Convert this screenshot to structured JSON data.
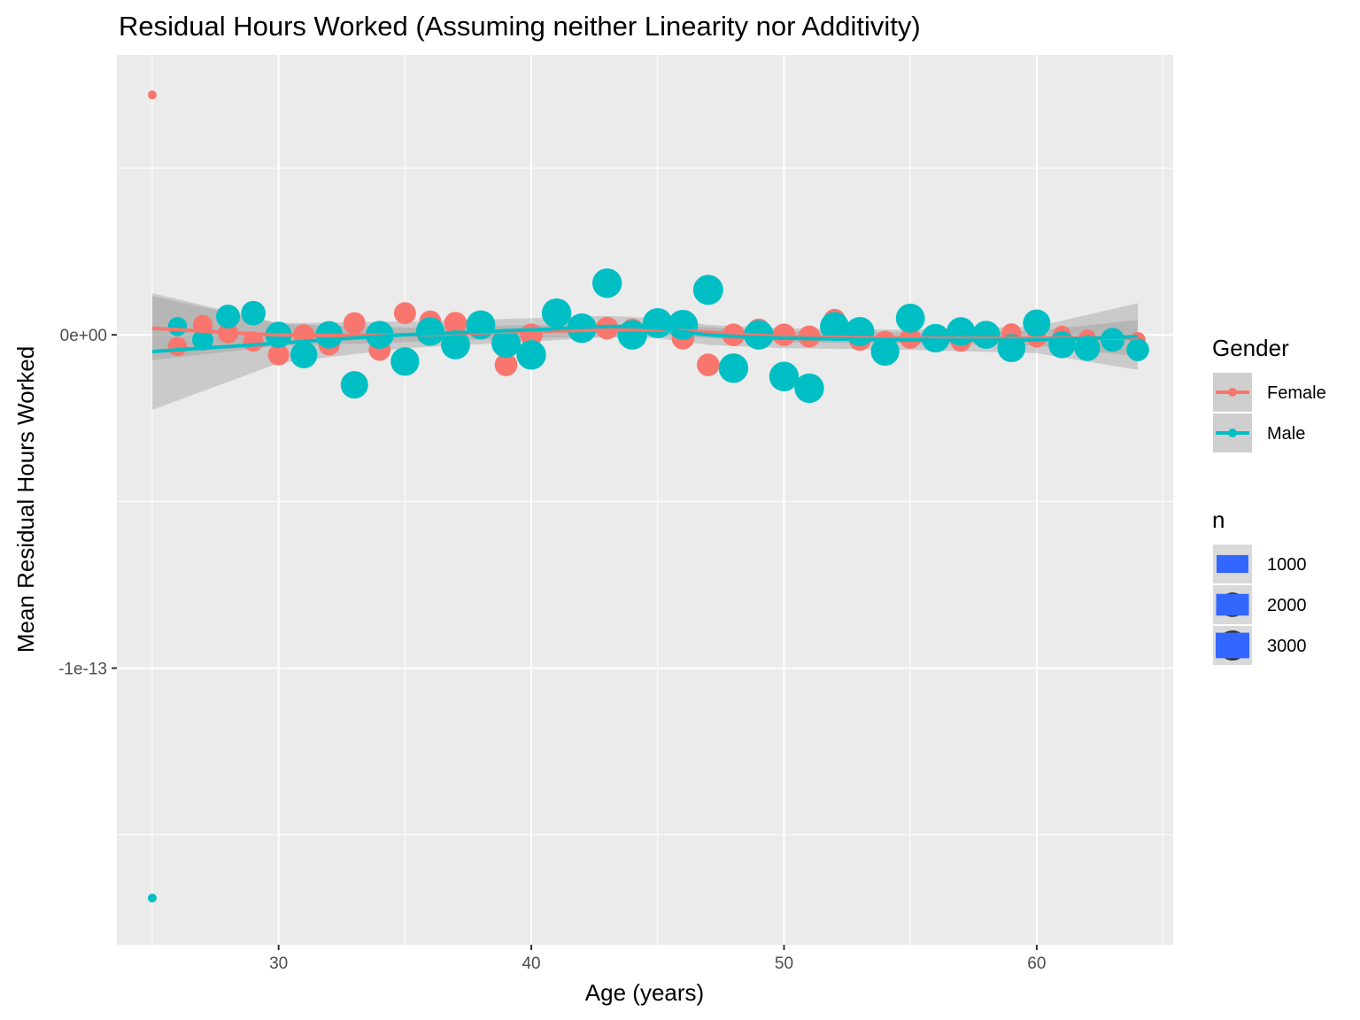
{
  "chart_data": {
    "type": "scatter",
    "title": "Residual Hours Worked (Assuming neither Linearity nor Additivity)",
    "xlabel": "Age (years)",
    "ylabel": "Mean Residual Hours Worked",
    "xlim": [
      23.6,
      65.4
    ],
    "ylim": [
      -1.83e-13,
      8.4e-14
    ],
    "x_ticks": [
      30,
      40,
      50,
      60
    ],
    "x_tick_labels": [
      "30",
      "40",
      "50",
      "60"
    ],
    "y_ticks": [
      0,
      -1e-13
    ],
    "y_tick_labels": [
      "0e+00",
      "-1e-13"
    ],
    "grid": true,
    "legend_position": "right",
    "colors": {
      "Female": "#F8766D",
      "Male": "#00BFC4",
      "panel": "#EBEBEB",
      "grid": "#FFFFFF",
      "ribbon": "#999999",
      "size_key": "#3366FF"
    },
    "legends": {
      "color": {
        "title": "Gender",
        "entries": [
          "Female",
          "Male"
        ]
      },
      "size": {
        "title": "n",
        "entries": [
          1000,
          2000,
          3000
        ]
      }
    },
    "series": [
      {
        "name": "Female",
        "points": [
          [
            25,
            7.2e-14,
            10
          ],
          [
            26,
            -3.5e-15,
            1200
          ],
          [
            27,
            3e-15,
            1300
          ],
          [
            28,
            5e-16,
            1400
          ],
          [
            29,
            -2e-15,
            1400
          ],
          [
            30,
            -6e-15,
            1500
          ],
          [
            31,
            0,
            1500
          ],
          [
            32,
            -3e-15,
            1500
          ],
          [
            33,
            3.5e-15,
            1600
          ],
          [
            34,
            -4.5e-15,
            1600
          ],
          [
            35,
            6.5e-15,
            1600
          ],
          [
            36,
            4e-15,
            1600
          ],
          [
            37,
            3.5e-15,
            1700
          ],
          [
            38,
            2e-15,
            1700
          ],
          [
            39,
            -9e-15,
            1700
          ],
          [
            40,
            0,
            1700
          ],
          [
            41,
            5.5e-15,
            1700
          ],
          [
            42,
            2e-15,
            1700
          ],
          [
            43,
            2e-15,
            1700
          ],
          [
            44,
            1.5e-15,
            1700
          ],
          [
            45,
            3e-15,
            1700
          ],
          [
            46,
            -1e-15,
            1700
          ],
          [
            47,
            -9e-15,
            1700
          ],
          [
            48,
            0,
            1700
          ],
          [
            49,
            1.5e-15,
            1700
          ],
          [
            50,
            0,
            1700
          ],
          [
            51,
            -5e-16,
            1600
          ],
          [
            52,
            4.5e-15,
            1600
          ],
          [
            53,
            -1.5e-15,
            1600
          ],
          [
            54,
            -2e-15,
            1500
          ],
          [
            55,
            -1e-15,
            1500
          ],
          [
            56,
            -1.5e-15,
            1400
          ],
          [
            57,
            -2e-15,
            1400
          ],
          [
            58,
            -1e-15,
            1300
          ],
          [
            59,
            5e-16,
            1300
          ],
          [
            60,
            -1e-15,
            1200
          ],
          [
            61,
            0,
            1100
          ],
          [
            62,
            -1e-15,
            1000
          ],
          [
            63,
            -1.5e-15,
            900
          ],
          [
            64,
            -1.5e-15,
            800
          ]
        ],
        "smooth": [
          [
            25,
            2e-15
          ],
          [
            30,
            0
          ],
          [
            35,
            0
          ],
          [
            40,
            1e-15
          ],
          [
            45,
            1.5e-15
          ],
          [
            50,
            -5e-16
          ],
          [
            55,
            -1e-15
          ],
          [
            60,
            -1e-15
          ],
          [
            64,
            -1e-15
          ]
        ]
      },
      {
        "name": "Male",
        "points": [
          [
            25,
            -1.69e-13,
            10
          ],
          [
            26,
            2.5e-15,
            1200
          ],
          [
            27,
            -1.5e-15,
            1500
          ],
          [
            28,
            5.5e-15,
            1900
          ],
          [
            29,
            6.5e-15,
            2000
          ],
          [
            30,
            0,
            2300
          ],
          [
            31,
            -6e-15,
            2400
          ],
          [
            32,
            0,
            2500
          ],
          [
            33,
            -1.5e-14,
            2500
          ],
          [
            34,
            0,
            2600
          ],
          [
            35,
            -8e-15,
            2700
          ],
          [
            36,
            1e-15,
            2700
          ],
          [
            37,
            -3e-15,
            2800
          ],
          [
            38,
            3e-15,
            2800
          ],
          [
            39,
            -2.5e-15,
            2800
          ],
          [
            40,
            -6e-15,
            2900
          ],
          [
            41,
            6.5e-15,
            2900
          ],
          [
            42,
            2e-15,
            2900
          ],
          [
            43,
            1.55e-14,
            2900
          ],
          [
            44,
            0,
            2900
          ],
          [
            45,
            3.5e-15,
            3000
          ],
          [
            46,
            3e-15,
            3000
          ],
          [
            47,
            1.35e-14,
            3000
          ],
          [
            48,
            -1e-14,
            2900
          ],
          [
            49,
            0,
            2900
          ],
          [
            50,
            -1.25e-14,
            2900
          ],
          [
            51,
            -1.6e-14,
            2900
          ],
          [
            52,
            2.5e-15,
            2800
          ],
          [
            53,
            1e-15,
            2800
          ],
          [
            54,
            -5e-15,
            2700
          ],
          [
            55,
            5e-15,
            2800
          ],
          [
            56,
            -1e-15,
            2700
          ],
          [
            57,
            1e-15,
            2700
          ],
          [
            58,
            0,
            2600
          ],
          [
            59,
            -4e-15,
            2600
          ],
          [
            60,
            3.5e-15,
            2500
          ],
          [
            61,
            -3e-15,
            2400
          ],
          [
            62,
            -4e-15,
            2200
          ],
          [
            63,
            -1.5e-15,
            1900
          ],
          [
            64,
            -4.5e-15,
            1700
          ]
        ],
        "smooth": [
          [
            25,
            -5e-15
          ],
          [
            30,
            -2.5e-15
          ],
          [
            35,
            0
          ],
          [
            40,
            1.5e-15
          ],
          [
            43,
            2.5e-15
          ],
          [
            45,
            2e-15
          ],
          [
            47,
            0
          ],
          [
            50,
            -1e-15
          ],
          [
            55,
            -1.5e-15
          ],
          [
            60,
            -1.5e-15
          ],
          [
            64,
            -5e-16
          ]
        ],
        "ribbon_halfwidth": [
          [
            25,
            1.75e-14
          ],
          [
            30,
            6e-15
          ],
          [
            35,
            4e-15
          ],
          [
            40,
            3.5e-15
          ],
          [
            45,
            3e-15
          ],
          [
            50,
            3e-15
          ],
          [
            55,
            3e-15
          ],
          [
            60,
            4e-15
          ],
          [
            64,
            1e-14
          ]
        ]
      }
    ]
  }
}
